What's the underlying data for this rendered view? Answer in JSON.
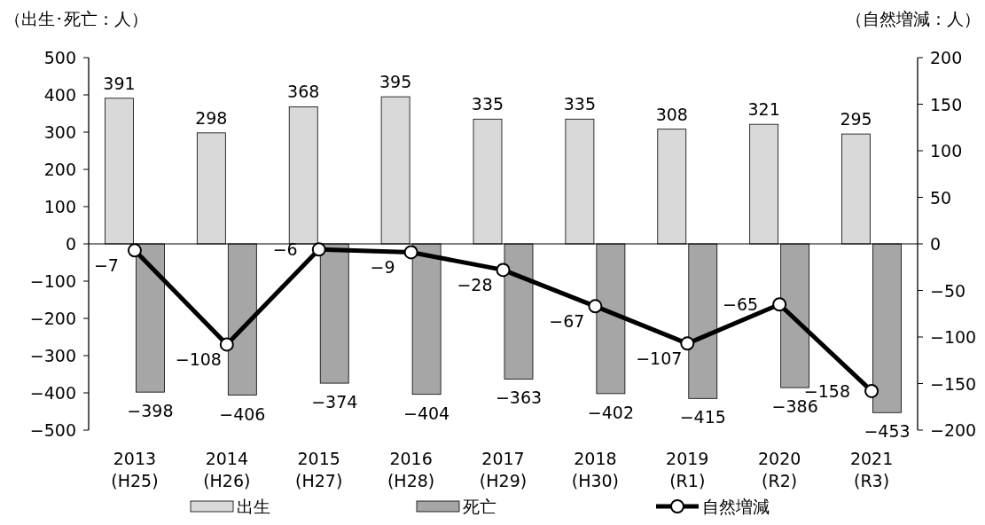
{
  "chart_data": {
    "type": "bar",
    "ylabel": "（出生･死亡：人）",
    "y2label": "（自然増減：人）",
    "categories": [
      "2013\n(H25)",
      "2014\n(H26)",
      "2015\n(H27)",
      "2016\n(H28)",
      "2017\n(H29)",
      "2018\n(H30)",
      "2019\n(R1)",
      "2020\n(R2)",
      "2021\n(R3)"
    ],
    "series": [
      {
        "name": "出生",
        "color": "#d9d9d9",
        "values": [
          391,
          298,
          368,
          395,
          335,
          335,
          308,
          321,
          295
        ]
      },
      {
        "name": "死亡",
        "color": "#a6a6a6",
        "values": [
          -398,
          -406,
          -374,
          -404,
          -363,
          -402,
          -415,
          -386,
          -453
        ]
      },
      {
        "name": "自然増減",
        "type": "line",
        "axis": "y2",
        "color": "#000000",
        "marker": "circle",
        "values": [
          -7,
          -108,
          -6,
          -9,
          -28,
          -67,
          -107,
          -65,
          -158
        ]
      }
    ],
    "ylim": [
      -500,
      500
    ],
    "yticks": [
      -500,
      -400,
      -300,
      -200,
      -100,
      0,
      100,
      200,
      300,
      400,
      500
    ],
    "y2lim": [
      -200,
      200
    ],
    "y2ticks": [
      -200,
      -150,
      -100,
      -50,
      0,
      50,
      100,
      150,
      200
    ],
    "data_labels": true,
    "legend": "bottom"
  }
}
